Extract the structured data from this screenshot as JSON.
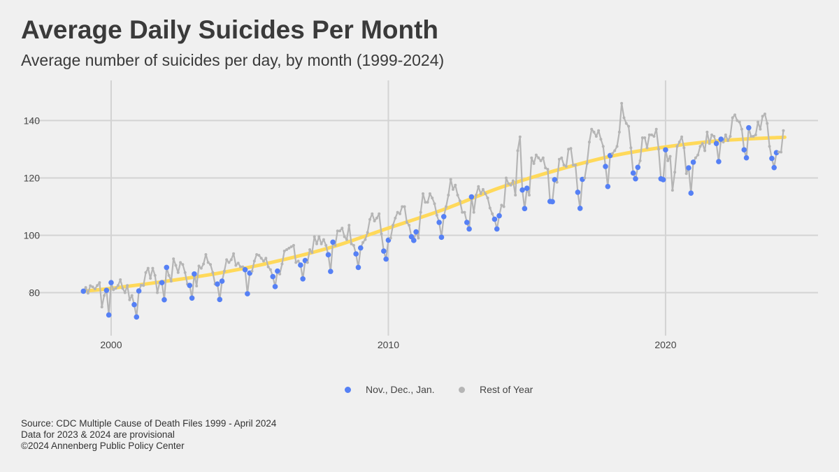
{
  "header": {
    "title": "Average Daily Suicides Per Month",
    "subtitle": "Average number of suicides per day, by month (1999-2024)"
  },
  "colors": {
    "highlight": "#5580f5",
    "rest": "#b5b5b5",
    "trend": "#ffd95a",
    "grid": "#d3d3d3"
  },
  "legend": {
    "highlight_label": "Nov., Dec., Jan.",
    "rest_label": "Rest of Year"
  },
  "footer": {
    "line1": "Source: CDC Multiple Cause of Death Files 1999 - April 2024",
    "line2": "Data for 2023 & 2024 are provisional",
    "line3": "©2024 Annenberg Public Policy Center"
  },
  "chart_data": {
    "type": "line",
    "title": "Average Daily Suicides Per Month",
    "xlabel": "",
    "ylabel": "",
    "xlim": [
      1997,
      2025.5
    ],
    "ylim": [
      65,
      154
    ],
    "x_ticks": [
      2000,
      2010,
      2020
    ],
    "y_ticks": [
      80,
      100,
      120,
      140
    ],
    "start": "1999-01",
    "highlight_months": [
      11,
      12,
      1
    ],
    "monthly_values_by_year": {
      "1999": [
        80.5,
        81.8,
        79.8,
        82.4,
        82,
        81.3,
        82.5,
        83.5,
        75,
        79,
        80.8,
        72.2
      ],
      "2000": [
        83.5,
        81,
        81.5,
        82.5,
        84.5,
        81.5,
        80,
        82.5,
        77.5,
        79,
        75.8,
        71.5
      ],
      "2001": [
        80.6,
        82.6,
        82.5,
        87,
        88.5,
        85,
        88.5,
        86,
        80,
        83.5,
        83.5,
        77.5
      ],
      "2002": [
        88.8,
        86,
        84,
        91.8,
        89.5,
        87,
        90.5,
        89.8,
        87,
        83,
        82.5,
        78.1
      ],
      "2003": [
        86.5,
        82.3,
        89.3,
        88.5,
        90,
        93.3,
        90.5,
        89.8,
        87,
        83,
        83,
        77.6
      ],
      "2004": [
        84,
        87.5,
        91.5,
        90.5,
        91.5,
        93.6,
        89.5,
        90.3,
        89,
        89,
        88,
        79.6
      ],
      "2005": [
        86.8,
        87.5,
        91,
        93.3,
        93,
        92,
        91,
        92,
        89,
        88,
        85.6,
        82.1
      ],
      "2006": [
        87.5,
        86.5,
        90,
        94.5,
        95,
        95.5,
        96,
        96.5,
        90.5,
        91,
        89.6,
        84.8
      ],
      "2007": [
        91.2,
        90.5,
        95,
        94,
        99.5,
        97,
        99.5,
        97,
        98.5,
        96.5,
        93.2,
        87.4
      ],
      "2008": [
        97.6,
        96.5,
        101.5,
        101.5,
        102.5,
        99.5,
        98.5,
        103.5,
        97,
        96.5,
        93.5,
        88.8
      ],
      "2009": [
        95.6,
        97.5,
        98.5,
        101,
        105.5,
        107.5,
        105,
        106,
        107.5,
        100.5,
        94.5,
        91.7
      ],
      "2010": [
        98.3,
        99,
        103.5,
        106,
        108,
        107.5,
        110,
        110,
        104.5,
        103.5,
        99.5,
        98.2
      ],
      "2011": [
        101.2,
        99,
        108,
        114.5,
        111.5,
        111.5,
        114.5,
        113,
        111,
        107,
        104.5,
        99.3
      ],
      "2012": [
        106.5,
        110,
        114,
        119.5,
        116,
        117.5,
        114,
        112,
        108,
        108,
        104.5,
        102.2
      ],
      "2013": [
        113.4,
        108,
        114,
        117,
        114.5,
        116,
        114.5,
        113,
        109.5,
        107.5,
        105.6,
        102.2
      ],
      "2014": [
        106.8,
        110.5,
        110,
        120,
        118,
        117.5,
        119,
        114,
        129.5,
        134.3,
        115.8,
        109.3
      ],
      "2015": [
        116.4,
        114,
        127,
        125,
        128,
        127,
        126,
        127,
        123.5,
        123,
        111.8,
        111.7
      ],
      "2016": [
        119.4,
        118.5,
        126.5,
        127,
        124.5,
        124,
        130,
        130.3,
        124.5,
        124.5,
        115,
        109.4
      ],
      "2017": [
        119.5,
        120,
        125,
        132.5,
        137,
        136,
        134.5,
        136.5,
        133.5,
        131,
        124,
        117
      ],
      "2018": [
        127.8,
        128.5,
        129.5,
        131,
        136,
        146,
        141,
        139,
        138,
        130.5,
        121.7,
        119.7
      ],
      "2019": [
        123.7,
        126,
        134,
        134,
        130.5,
        135,
        135,
        134.5,
        137,
        130,
        119.7,
        119.4
      ],
      "2020": [
        129.8,
        126,
        127.5,
        115.7,
        122,
        131,
        132.5,
        134.3,
        130.5,
        121.5,
        123.5,
        114.7
      ],
      "2021": [
        125.5,
        127,
        128,
        131,
        132,
        129.5,
        136,
        132,
        135,
        134.5,
        132,
        125.7
      ],
      "2022": [
        133.5,
        132.5,
        135,
        133,
        134.5,
        141,
        142,
        140,
        139.5,
        137,
        129.8,
        127
      ],
      "2023": [
        137.5,
        134.5,
        134.5,
        135,
        139.5,
        137,
        141.5,
        142.3,
        139,
        131,
        126.8,
        123.6
      ],
      "2024": [
        128.8,
        129,
        129,
        136.5
      ]
    },
    "trend": {
      "x": [
        1999,
        2000,
        2002,
        2004,
        2006,
        2008,
        2010,
        2012,
        2014,
        2016,
        2018,
        2020,
        2022,
        2024.3
      ],
      "y": [
        80.5,
        81.5,
        84,
        87,
        91,
        96,
        102.5,
        109,
        116.5,
        122.5,
        127.5,
        130.8,
        133,
        134.2
      ]
    },
    "legend_position": "bottom"
  }
}
